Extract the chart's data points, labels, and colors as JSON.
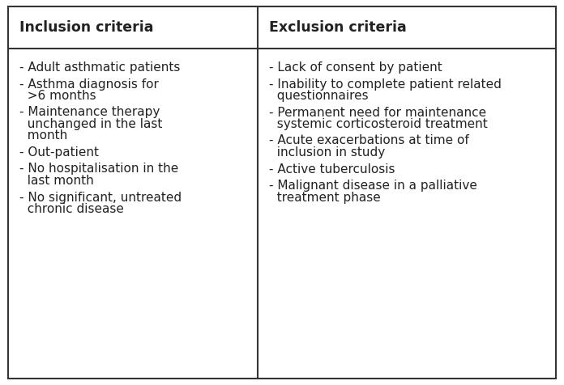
{
  "col1_header": "Inclusion criteria",
  "col2_header": "Exclusion criteria",
  "col1_items": [
    "- Adult asthmatic patients",
    "- Asthma diagnosis for\n  >6 months",
    "- Maintenance therapy\n  unchanged in the last\n  month",
    "- Out-patient",
    "- No hospitalisation in the\n  last month",
    "- No significant, untreated\n  chronic disease"
  ],
  "col2_items": [
    "- Lack of consent by patient",
    "- Inability to complete patient related\n  questionnaires",
    "- Permanent need for maintenance\n  systemic corticosteroid treatment",
    "- Acute exacerbations at time of\n  inclusion in study",
    "- Active tuberculosis",
    "- Malignant disease in a palliative\n  treatment phase"
  ],
  "background_color": "#ffffff",
  "border_color": "#333333",
  "header_font_size": 12.5,
  "body_font_size": 11.0,
  "text_color": "#222222",
  "fig_width": 6.96,
  "fig_height": 4.76,
  "dpi": 100
}
